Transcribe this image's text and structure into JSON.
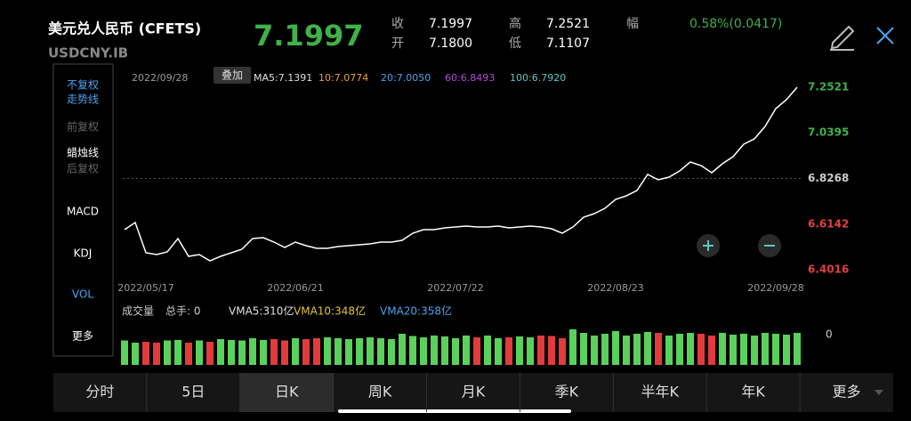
{
  "header": {
    "title": "美元兑人民币 (CFETS)",
    "code": "USDCNY.IB",
    "price": "7.1997",
    "stats": [
      {
        "label": "收",
        "value": "7.1997"
      },
      {
        "label": "开",
        "value": "7.1800"
      },
      {
        "label": "高",
        "value": "7.2521"
      },
      {
        "label": "低",
        "value": "7.1107"
      }
    ],
    "range_label": "幅",
    "range_value": "0.58%(0.0417)"
  },
  "side_menu": [
    {
      "text": "不复权",
      "color": "#4aa3f0"
    },
    {
      "text": "走势线",
      "color": "#4aa3f0"
    },
    {
      "text": "前复权",
      "color": "#666666"
    },
    {
      "text": "蜡烛线",
      "color": "#ffffff"
    },
    {
      "text": "后复权",
      "color": "#666666"
    },
    {
      "text": "MACD",
      "color": "#ffffff"
    },
    {
      "text": "KDJ",
      "color": "#ffffff"
    },
    {
      "text": "VOL",
      "color": "#4aa3f0"
    },
    {
      "text": "更多",
      "color": "#ffffff"
    }
  ],
  "chart_header": {
    "date": "2022/09/28",
    "overlay": "叠加",
    "ma": [
      {
        "text": "MA5:7.1391",
        "color": "#e0e0e0"
      },
      {
        "text": "10:7.0774",
        "color": "#e8a33a"
      },
      {
        "text": "20:7.0050",
        "color": "#4aa3f0"
      },
      {
        "text": "60:6.8493",
        "color": "#b44ad8"
      },
      {
        "text": "100:6.7920",
        "color": "#5cc8c0"
      }
    ]
  },
  "chart_data": {
    "type": "line",
    "color": "#ffffff",
    "categories": [
      null,
      null,
      "2022/05/17",
      null,
      null,
      null,
      null,
      null,
      null,
      null,
      null,
      null,
      null,
      null,
      null,
      null,
      "2022/06/21",
      null,
      null,
      null,
      null,
      null,
      null,
      null,
      null,
      null,
      null,
      null,
      null,
      null,
      null,
      "2022/07/22",
      null,
      null,
      null,
      null,
      null,
      null,
      null,
      null,
      null,
      null,
      null,
      null,
      null,
      null,
      "2022/08/23",
      null,
      null,
      null,
      null,
      null,
      null,
      null,
      null,
      null,
      null,
      null,
      null,
      null,
      null,
      "2022/09/28",
      null,
      null
    ],
    "values": [
      6.5883,
      6.6215,
      6.4804,
      6.4721,
      6.4845,
      6.5468,
      6.4638,
      6.4721,
      6.443,
      6.4638,
      6.4804,
      6.497,
      6.5468,
      6.5509,
      6.5302,
      6.5053,
      6.5302,
      6.5136,
      6.5011,
      6.5011,
      6.5094,
      6.5136,
      6.5177,
      6.5219,
      6.5302,
      6.5302,
      6.5385,
      6.5717,
      6.5883,
      6.5883,
      6.5966,
      6.6007,
      6.6049,
      6.6007,
      6.6007,
      6.6049,
      6.5966,
      6.6007,
      6.6049,
      6.6007,
      6.5924,
      6.5717,
      6.6007,
      6.6463,
      6.6629,
      6.6878,
      6.7293,
      6.7459,
      6.7708,
      6.8455,
      6.8206,
      6.8331,
      6.8621,
      6.9036,
      6.887,
      6.8538,
      6.8953,
      6.9285,
      6.9866,
      7.0115,
      7.0695,
      7.1525,
      7.194,
      7.2521
    ],
    "ylim": [
      6.4016,
      7.2521
    ],
    "yticks": [
      7.2521,
      7.0395,
      6.8268,
      6.6142,
      6.4016
    ],
    "ytick_colors": [
      "#3fb24a",
      "#3fb24a",
      "#cccccc",
      "#e04040",
      "#e04040"
    ],
    "dashed_line": 6.8268
  },
  "volume": {
    "type": "bar",
    "up_color": "#5ad15a",
    "down_color": "#e23b3b",
    "legend": [
      {
        "text": "成交量",
        "color": "#cccccc"
      },
      {
        "text": "总手: 0",
        "color": "#cccccc"
      },
      {
        "text": "VMA5:310亿",
        "color": "#e0e0e0"
      },
      {
        "text": "VMA10:348亿",
        "color": "#e8c43a"
      },
      {
        "text": "VMA20:358亿",
        "color": "#4aa3f0"
      }
    ],
    "values": [
      0.55,
      0.5,
      0.52,
      0.5,
      0.55,
      0.56,
      0.5,
      0.55,
      0.52,
      0.58,
      0.56,
      0.55,
      0.6,
      0.56,
      0.58,
      0.55,
      0.6,
      0.58,
      0.6,
      0.62,
      0.6,
      0.58,
      0.6,
      0.62,
      0.6,
      0.58,
      0.7,
      0.65,
      0.62,
      0.66,
      0.64,
      0.6,
      0.66,
      0.62,
      0.66,
      0.6,
      0.62,
      0.64,
      0.62,
      0.66,
      0.65,
      0.6,
      0.8,
      0.72,
      0.66,
      0.7,
      0.76,
      0.66,
      0.7,
      0.74,
      0.72,
      0.66,
      0.7,
      0.72,
      0.7,
      0.66,
      0.72,
      0.68,
      0.7,
      0.66,
      0.72,
      0.7,
      0.68,
      0.72
    ],
    "ylim": [
      0,
      1
    ],
    "yticks": [
      0
    ]
  },
  "tabs": {
    "items": [
      "分时",
      "5日",
      "日K",
      "周K",
      "月K",
      "季K",
      "半年K",
      "年K",
      "更多"
    ],
    "selected": 2
  }
}
